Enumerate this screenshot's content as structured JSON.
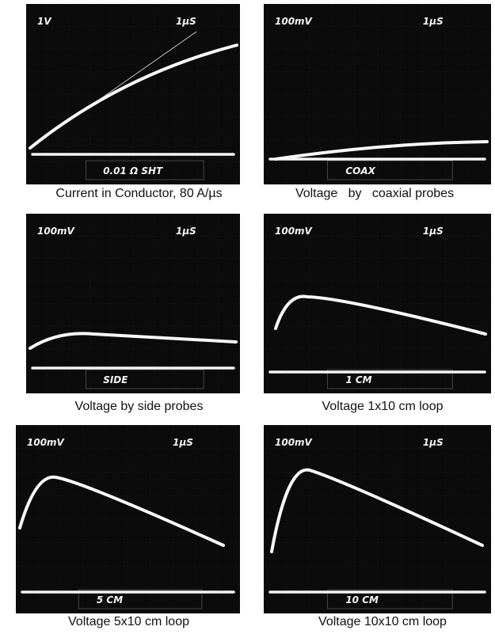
{
  "panels": [
    {
      "volts": "1V",
      "time": "1µS",
      "probe": "0.01 Ω SHT",
      "caption": "Current in Conductor, 80 A/µs"
    },
    {
      "volts": "100mV",
      "time": "1µS",
      "probe": "COAX",
      "caption": "Voltage   by   coaxial probes"
    },
    {
      "volts": "100mV",
      "time": "1µS",
      "probe": "SIDE",
      "caption": "Voltage by side probes"
    },
    {
      "volts": "100mV",
      "time": "1µS",
      "probe": "1 CM",
      "caption": "Voltage 1x10 cm loop"
    },
    {
      "volts": "100mV",
      "time": "1µS",
      "probe": "5 CM",
      "caption": "Voltage 5x10 cm loop"
    },
    {
      "volts": "100mV",
      "time": "1µS",
      "probe": "10 CM",
      "caption": "Voltage 10x10 cm loop"
    }
  ]
}
